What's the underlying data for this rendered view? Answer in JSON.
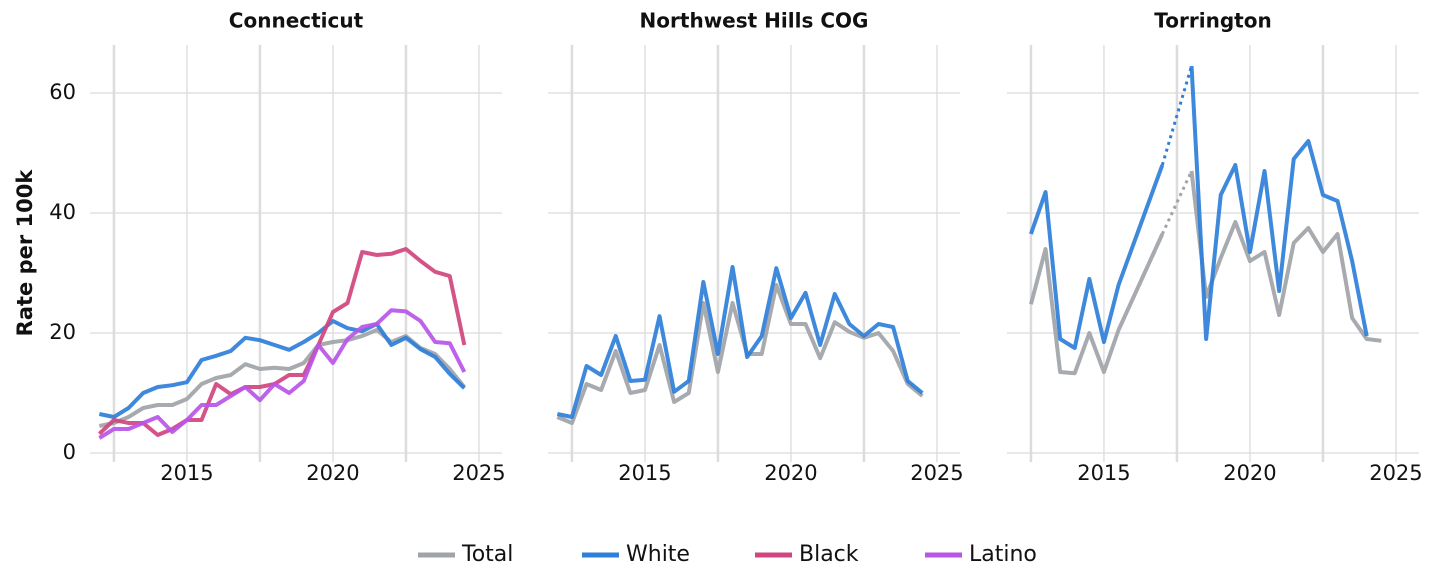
{
  "chart_data": [
    {
      "type": "line",
      "title": "Connecticut",
      "ylabel": "Rate per 100k",
      "x": [
        2012,
        2012.5,
        2013,
        2013.5,
        2014,
        2014.5,
        2015,
        2015.5,
        2016,
        2016.5,
        2017,
        2017.5,
        2018,
        2018.5,
        2019,
        2019.5,
        2020,
        2020.5,
        2021,
        2021.5,
        2022,
        2022.5,
        2023,
        2023.5,
        2024,
        2024.5
      ],
      "series": [
        {
          "name": "Total",
          "color": "#a0a3a8",
          "values": [
            4.5,
            5,
            6,
            7.5,
            8,
            8,
            9,
            11.5,
            12.5,
            13,
            14.8,
            14,
            14.2,
            14,
            15,
            18,
            18.5,
            18.8,
            19.5,
            20.5,
            18.5,
            19.5,
            17.5,
            16.5,
            14,
            11
          ]
        },
        {
          "name": "White",
          "color": "#2e7fd9",
          "values": [
            6.5,
            6,
            7.5,
            10,
            11,
            11.3,
            11.8,
            15.5,
            16.2,
            17,
            19.2,
            18.8,
            18,
            17.2,
            18.5,
            20,
            22,
            20.8,
            20.3,
            21.5,
            18,
            19.2,
            17.3,
            16,
            13.2,
            10.8
          ]
        },
        {
          "name": "Black",
          "color": "#d0457f",
          "values": [
            3.2,
            5.5,
            5,
            5,
            3,
            4,
            5.5,
            5.5,
            11.5,
            9.8,
            11,
            11,
            11.5,
            13,
            13,
            18,
            23.5,
            25,
            33.5,
            33,
            33.2,
            34,
            32,
            30.2,
            29.5,
            18
          ]
        },
        {
          "name": "Latino",
          "color": "#b855e8",
          "values": [
            2.5,
            4,
            4,
            5,
            6,
            3.5,
            5.5,
            8,
            8,
            9.5,
            11,
            8.8,
            11.5,
            10,
            12,
            18,
            15,
            19,
            21,
            21.5,
            23.8,
            23.6,
            22,
            18.5,
            18.3,
            13.5
          ]
        }
      ],
      "xlim": [
        2011.68,
        2025.79
      ],
      "xticks": [
        2015,
        2020,
        2025
      ],
      "xminor": [
        2012.5,
        2017.5,
        2022.5
      ],
      "ylim": [
        -1.5,
        68
      ],
      "yticks": [
        0,
        20,
        40,
        60
      ],
      "grid": true
    },
    {
      "type": "line",
      "title": "Northwest Hills COG",
      "x": [
        2012,
        2012.5,
        2013,
        2013.5,
        2014,
        2014.5,
        2015,
        2015.5,
        2016,
        2016.5,
        2017,
        2017.5,
        2018,
        2018.5,
        2019,
        2019.5,
        2020,
        2020.5,
        2021,
        2021.5,
        2022,
        2022.5,
        2023,
        2023.5,
        2024,
        2024.5
      ],
      "series": [
        {
          "name": "Total",
          "color": "#a0a3a8",
          "values": [
            6,
            5,
            11.5,
            10.5,
            17,
            10,
            10.5,
            18,
            8.5,
            10,
            25,
            13.5,
            25,
            16.5,
            16.5,
            28,
            21.5,
            21.5,
            15.8,
            21.8,
            20.2,
            19.2,
            20,
            17,
            11.5,
            9.5
          ]
        },
        {
          "name": "White",
          "color": "#2e7fd9",
          "values": [
            6.5,
            6,
            14.5,
            13,
            19.5,
            12,
            12.2,
            22.8,
            10.2,
            12,
            28.5,
            16.5,
            31,
            16,
            19.5,
            30.8,
            22.5,
            26.7,
            18,
            26.5,
            21.5,
            19.5,
            21.5,
            21,
            12,
            10
          ]
        }
      ],
      "xlim": [
        2011.68,
        2025.79
      ],
      "xticks": [
        2015,
        2020,
        2025
      ],
      "xminor": [
        2012.5,
        2017.5,
        2022.5
      ],
      "ylim": [
        -1.5,
        68
      ],
      "yticks": [
        0,
        20,
        40,
        60
      ],
      "grid": true
    },
    {
      "type": "line",
      "title": "Torrington",
      "x": [
        2012.5,
        2013,
        2013.5,
        2014,
        2014.5,
        2015,
        2015.5,
        2017,
        2017.5,
        2018,
        2018.5,
        2019,
        2019.5,
        2020,
        2020.5,
        2021,
        2021.5,
        2022,
        2022.5,
        2023,
        2023.5,
        2024,
        2024.5
      ],
      "series": [
        {
          "name": "Total",
          "color": "#a0a3a8",
          "values": [
            24.8,
            34,
            13.5,
            13.3,
            20,
            13.5,
            20.5,
            36.5,
            null,
            47,
            26,
            32.5,
            38.5,
            32,
            33.5,
            23,
            35,
            37.5,
            33.5,
            36.5,
            22.5,
            19,
            18.7
          ]
        },
        {
          "name": "White",
          "color": "#2e7fd9",
          "values": [
            36.5,
            43.5,
            19,
            17.5,
            29,
            18.5,
            28,
            48,
            null,
            64.5,
            19,
            43,
            48,
            33.5,
            47,
            27,
            49,
            52,
            43,
            42,
            32,
            19.5,
            null
          ]
        }
      ],
      "xlim": [
        2011.68,
        2025.79
      ],
      "xticks": [
        2015,
        2020,
        2025
      ],
      "xminor": [
        2012.5,
        2017.5,
        2022.5
      ],
      "ylim": [
        -1.5,
        68
      ],
      "yticks": [
        0,
        20,
        40,
        60
      ],
      "grid": true
    }
  ]
}
